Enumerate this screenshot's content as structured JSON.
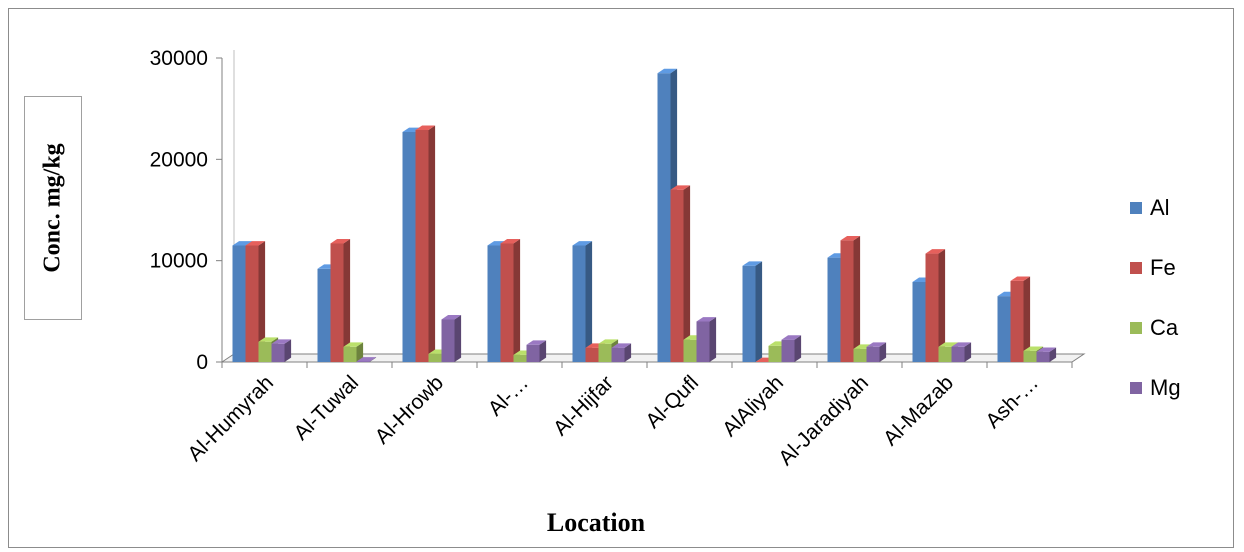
{
  "chart_data": {
    "type": "bar",
    "title": "",
    "xlabel": "Location",
    "ylabel": "Conc. mg/kg",
    "ylim": [
      0,
      30000
    ],
    "yticks": [
      "0",
      "10000",
      "20000",
      "30000"
    ],
    "categories": [
      "Al-Humyrah",
      "Al-Tuwal",
      "Al-Hrowb",
      "Al-…",
      "Al-Hijfar",
      "Al-Qufl",
      "AlAliyah",
      "Al-Jaradiyah",
      "Al-Mazab",
      "Ash-…"
    ],
    "series": [
      {
        "name": "Al",
        "color": "#4f81bd",
        "values": [
          11500,
          9200,
          22700,
          11500,
          11500,
          28500,
          9500,
          10300,
          7900,
          6500
        ]
      },
      {
        "name": "Fe",
        "color": "#c0504d",
        "values": [
          11500,
          11700,
          22900,
          11700,
          1400,
          17000,
          0,
          12000,
          10700,
          8000
        ]
      },
      {
        "name": "Ca",
        "color": "#9bbb59",
        "values": [
          2000,
          1500,
          800,
          700,
          1800,
          2200,
          1600,
          1300,
          1500,
          1100
        ]
      },
      {
        "name": "Mg",
        "color": "#8064a2",
        "values": [
          1800,
          50,
          4200,
          1700,
          1400,
          4000,
          2200,
          1500,
          1500,
          1000
        ]
      }
    ],
    "legend_position": "right",
    "grid": false
  }
}
